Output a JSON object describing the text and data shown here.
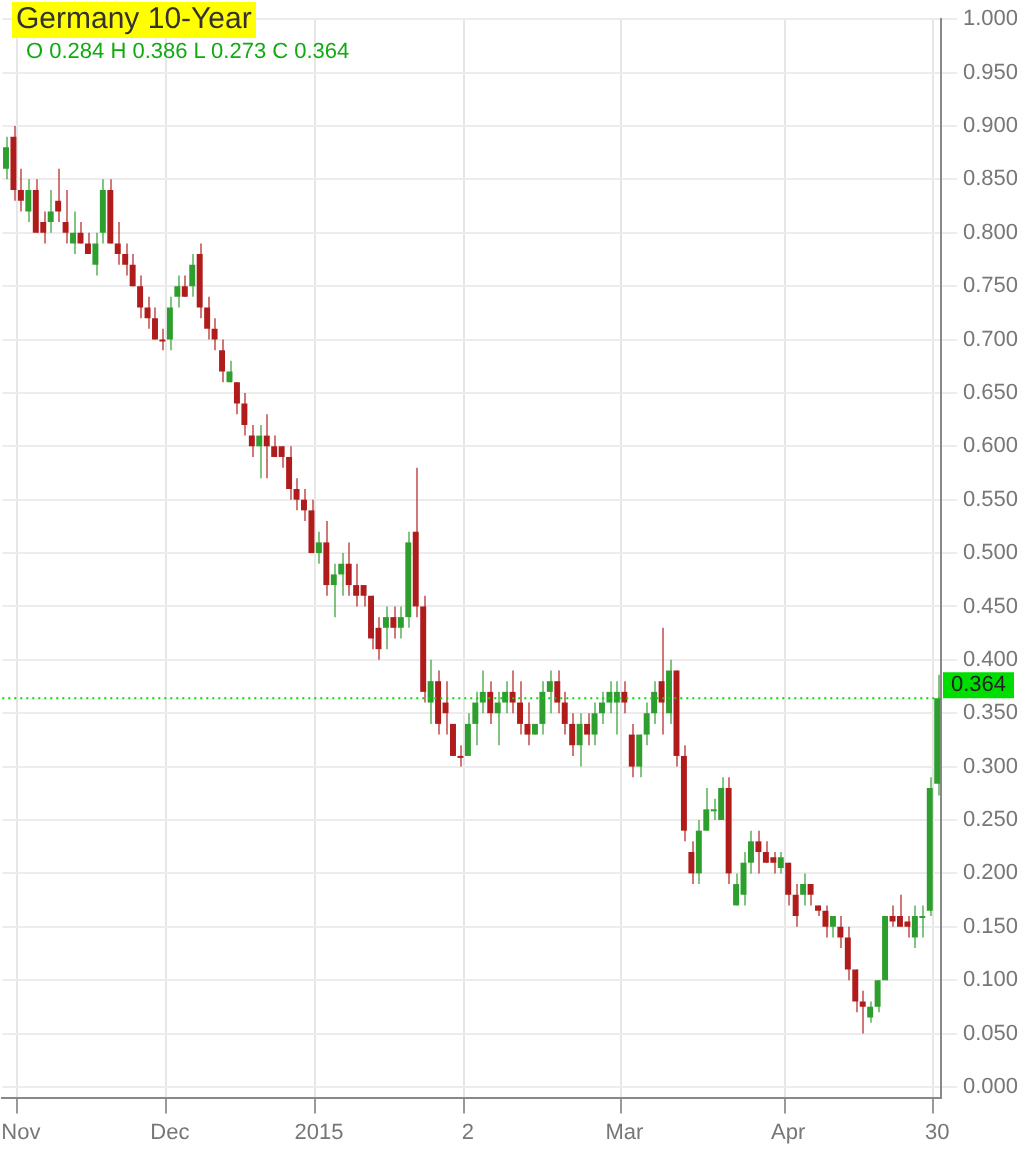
{
  "chart_data": {
    "type": "candlestick",
    "title": "Germany 10-Year",
    "subtitle": "O 0.284 H 0.386 L 0.273 C 0.364",
    "categories": [
      null,
      null,
      "Nov",
      null,
      null,
      null,
      null,
      null,
      null,
      null,
      null,
      null,
      null,
      null,
      null,
      null,
      null,
      null,
      null,
      null,
      null,
      null,
      "Dec",
      null,
      null,
      null,
      null,
      null,
      null,
      null,
      null,
      null,
      null,
      null,
      null,
      null,
      null,
      null,
      null,
      null,
      null,
      null,
      "2015",
      null,
      null,
      null,
      null,
      null,
      null,
      null,
      null,
      null,
      null,
      null,
      null,
      null,
      null,
      null,
      null,
      null,
      null,
      null,
      "2",
      null,
      null,
      null,
      null,
      null,
      null,
      null,
      null,
      null,
      null,
      null,
      null,
      null,
      null,
      null,
      null,
      null,
      null,
      null,
      null,
      "Mar",
      null,
      null,
      null,
      null,
      null,
      null,
      null,
      null,
      null,
      null,
      null,
      null,
      null,
      null,
      null,
      null,
      null,
      null,
      null,
      null,
      null,
      "Apr",
      null,
      null,
      null,
      null,
      null,
      null,
      null,
      null,
      null,
      null,
      null,
      null,
      null,
      null,
      null,
      null,
      null,
      null,
      null,
      "30"
    ],
    "ohlc": [
      [
        0.86,
        0.89,
        0.85,
        0.88
      ],
      [
        0.89,
        0.9,
        0.83,
        0.84
      ],
      [
        0.84,
        0.86,
        0.82,
        0.83
      ],
      [
        0.82,
        0.85,
        0.81,
        0.84
      ],
      [
        0.84,
        0.85,
        0.8,
        0.8
      ],
      [
        0.81,
        0.82,
        0.79,
        0.8
      ],
      [
        0.81,
        0.84,
        0.8,
        0.82
      ],
      [
        0.83,
        0.86,
        0.81,
        0.82
      ],
      [
        0.81,
        0.84,
        0.79,
        0.8
      ],
      [
        0.79,
        0.82,
        0.78,
        0.8
      ],
      [
        0.8,
        0.81,
        0.79,
        0.79
      ],
      [
        0.79,
        0.8,
        0.78,
        0.78
      ],
      [
        0.77,
        0.8,
        0.76,
        0.79
      ],
      [
        0.8,
        0.85,
        0.79,
        0.84
      ],
      [
        0.84,
        0.85,
        0.79,
        0.79
      ],
      [
        0.79,
        0.81,
        0.77,
        0.78
      ],
      [
        0.78,
        0.79,
        0.76,
        0.77
      ],
      [
        0.77,
        0.78,
        0.75,
        0.75
      ],
      [
        0.75,
        0.76,
        0.72,
        0.73
      ],
      [
        0.73,
        0.74,
        0.71,
        0.72
      ],
      [
        0.72,
        0.73,
        0.7,
        0.7
      ],
      [
        0.7,
        0.71,
        0.69,
        0.7
      ],
      [
        0.7,
        0.74,
        0.69,
        0.73
      ],
      [
        0.74,
        0.76,
        0.73,
        0.75
      ],
      [
        0.75,
        0.76,
        0.74,
        0.74
      ],
      [
        0.75,
        0.78,
        0.74,
        0.77
      ],
      [
        0.78,
        0.79,
        0.72,
        0.73
      ],
      [
        0.73,
        0.74,
        0.7,
        0.71
      ],
      [
        0.71,
        0.72,
        0.69,
        0.7
      ],
      [
        0.69,
        0.7,
        0.66,
        0.67
      ],
      [
        0.66,
        0.68,
        0.66,
        0.67
      ],
      [
        0.66,
        0.66,
        0.63,
        0.64
      ],
      [
        0.64,
        0.65,
        0.61,
        0.62
      ],
      [
        0.61,
        0.62,
        0.59,
        0.6
      ],
      [
        0.6,
        0.62,
        0.57,
        0.61
      ],
      [
        0.61,
        0.63,
        0.57,
        0.6
      ],
      [
        0.6,
        0.61,
        0.59,
        0.59
      ],
      [
        0.6,
        0.6,
        0.58,
        0.59
      ],
      [
        0.59,
        0.6,
        0.55,
        0.56
      ],
      [
        0.56,
        0.57,
        0.54,
        0.55
      ],
      [
        0.55,
        0.56,
        0.53,
        0.54
      ],
      [
        0.54,
        0.55,
        0.5,
        0.5
      ],
      [
        0.5,
        0.52,
        0.49,
        0.51
      ],
      [
        0.51,
        0.53,
        0.46,
        0.47
      ],
      [
        0.47,
        0.49,
        0.44,
        0.48
      ],
      [
        0.48,
        0.5,
        0.46,
        0.49
      ],
      [
        0.49,
        0.51,
        0.46,
        0.47
      ],
      [
        0.47,
        0.49,
        0.45,
        0.46
      ],
      [
        0.47,
        0.47,
        0.45,
        0.46
      ],
      [
        0.46,
        0.46,
        0.41,
        0.42
      ],
      [
        0.43,
        0.44,
        0.4,
        0.41
      ],
      [
        0.43,
        0.45,
        0.41,
        0.44
      ],
      [
        0.44,
        0.45,
        0.42,
        0.43
      ],
      [
        0.43,
        0.45,
        0.42,
        0.44
      ],
      [
        0.44,
        0.52,
        0.43,
        0.51
      ],
      [
        0.52,
        0.58,
        0.44,
        0.45
      ],
      [
        0.45,
        0.46,
        0.36,
        0.37
      ],
      [
        0.36,
        0.4,
        0.34,
        0.38
      ],
      [
        0.38,
        0.39,
        0.33,
        0.34
      ],
      [
        0.36,
        0.38,
        0.33,
        0.35
      ],
      [
        0.34,
        0.34,
        0.31,
        0.31
      ],
      [
        0.31,
        0.32,
        0.3,
        0.31
      ],
      [
        0.31,
        0.35,
        0.31,
        0.34
      ],
      [
        0.34,
        0.37,
        0.32,
        0.36
      ],
      [
        0.36,
        0.39,
        0.35,
        0.37
      ],
      [
        0.37,
        0.38,
        0.34,
        0.35
      ],
      [
        0.35,
        0.37,
        0.32,
        0.36
      ],
      [
        0.36,
        0.38,
        0.35,
        0.37
      ],
      [
        0.37,
        0.39,
        0.35,
        0.36
      ],
      [
        0.36,
        0.38,
        0.33,
        0.34
      ],
      [
        0.34,
        0.36,
        0.32,
        0.33
      ],
      [
        0.33,
        0.34,
        0.33,
        0.34
      ],
      [
        0.34,
        0.38,
        0.33,
        0.37
      ],
      [
        0.37,
        0.39,
        0.35,
        0.38
      ],
      [
        0.38,
        0.39,
        0.35,
        0.36
      ],
      [
        0.36,
        0.37,
        0.33,
        0.34
      ],
      [
        0.34,
        0.35,
        0.31,
        0.32
      ],
      [
        0.32,
        0.35,
        0.3,
        0.34
      ],
      [
        0.34,
        0.35,
        0.32,
        0.33
      ],
      [
        0.33,
        0.36,
        0.32,
        0.35
      ],
      [
        0.35,
        0.37,
        0.34,
        0.36
      ],
      [
        0.36,
        0.38,
        0.35,
        0.37
      ],
      [
        0.36,
        0.38,
        0.33,
        0.37
      ],
      [
        0.37,
        0.38,
        0.35,
        0.36
      ],
      [
        0.33,
        0.34,
        0.29,
        0.3
      ],
      [
        0.3,
        0.33,
        0.29,
        0.33
      ],
      [
        0.33,
        0.36,
        0.32,
        0.35
      ],
      [
        0.35,
        0.38,
        0.34,
        0.37
      ],
      [
        0.38,
        0.43,
        0.33,
        0.36
      ],
      [
        0.35,
        0.4,
        0.34,
        0.39
      ],
      [
        0.39,
        0.39,
        0.3,
        0.31
      ],
      [
        0.31,
        0.32,
        0.23,
        0.24
      ],
      [
        0.22,
        0.23,
        0.19,
        0.2
      ],
      [
        0.2,
        0.25,
        0.19,
        0.24
      ],
      [
        0.24,
        0.28,
        0.24,
        0.26
      ],
      [
        0.26,
        0.27,
        0.25,
        0.26
      ],
      [
        0.25,
        0.29,
        0.25,
        0.28
      ],
      [
        0.28,
        0.29,
        0.19,
        0.2
      ],
      [
        0.17,
        0.2,
        0.17,
        0.19
      ],
      [
        0.18,
        0.22,
        0.17,
        0.21
      ],
      [
        0.21,
        0.24,
        0.2,
        0.23
      ],
      [
        0.23,
        0.24,
        0.2,
        0.22
      ],
      [
        0.22,
        0.23,
        0.21,
        0.21
      ],
      [
        0.215,
        0.22,
        0.2,
        0.21
      ],
      [
        0.205,
        0.22,
        0.2,
        0.215
      ],
      [
        0.21,
        0.21,
        0.17,
        0.18
      ],
      [
        0.18,
        0.19,
        0.15,
        0.16
      ],
      [
        0.18,
        0.2,
        0.17,
        0.19
      ],
      [
        0.19,
        0.19,
        0.17,
        0.18
      ],
      [
        0.17,
        0.17,
        0.16,
        0.165
      ],
      [
        0.165,
        0.17,
        0.14,
        0.15
      ],
      [
        0.15,
        0.16,
        0.14,
        0.16
      ],
      [
        0.15,
        0.16,
        0.13,
        0.14
      ],
      [
        0.14,
        0.15,
        0.1,
        0.11
      ],
      [
        0.11,
        0.11,
        0.07,
        0.08
      ],
      [
        0.08,
        0.09,
        0.05,
        0.075
      ],
      [
        0.065,
        0.08,
        0.06,
        0.075
      ],
      [
        0.075,
        0.1,
        0.07,
        0.1
      ],
      [
        0.1,
        0.16,
        0.1,
        0.16
      ],
      [
        0.16,
        0.17,
        0.15,
        0.155
      ],
      [
        0.16,
        0.18,
        0.15,
        0.15
      ],
      [
        0.155,
        0.16,
        0.14,
        0.15
      ],
      [
        0.14,
        0.17,
        0.13,
        0.16
      ],
      [
        0.16,
        0.17,
        0.14,
        0.16
      ],
      [
        0.165,
        0.29,
        0.16,
        0.28
      ],
      [
        0.284,
        0.386,
        0.273,
        0.364
      ]
    ],
    "colors": [
      "#2e9e2e",
      "#b01c1c",
      "#b01c1c",
      "#2e9e2e",
      "#b01c1c",
      "#b01c1c",
      "#2e9e2e",
      "#b01c1c",
      "#b01c1c",
      "#2e9e2e",
      "#b01c1c",
      "#b01c1c",
      "#2e9e2e",
      "#2e9e2e",
      "#b01c1c",
      "#b01c1c",
      "#b01c1c",
      "#b01c1c",
      "#b01c1c",
      "#b01c1c",
      "#b01c1c",
      "#b01c1c",
      "#2e9e2e",
      "#2e9e2e",
      "#b01c1c",
      "#2e9e2e",
      "#b01c1c",
      "#b01c1c",
      "#b01c1c",
      "#b01c1c",
      "#2e9e2e",
      "#b01c1c",
      "#b01c1c",
      "#b01c1c",
      "#2e9e2e",
      "#b01c1c",
      "#b01c1c",
      "#b01c1c",
      "#b01c1c",
      "#b01c1c",
      "#b01c1c",
      "#b01c1c",
      "#2e9e2e",
      "#b01c1c",
      "#2e9e2e",
      "#2e9e2e",
      "#b01c1c",
      "#b01c1c",
      "#b01c1c",
      "#b01c1c",
      "#b01c1c",
      "#2e9e2e",
      "#b01c1c",
      "#2e9e2e",
      "#2e9e2e",
      "#b01c1c",
      "#b01c1c",
      "#2e9e2e",
      "#b01c1c",
      "#b01c1c",
      "#b01c1c",
      "#b01c1c",
      "#2e9e2e",
      "#2e9e2e",
      "#2e9e2e",
      "#b01c1c",
      "#2e9e2e",
      "#2e9e2e",
      "#b01c1c",
      "#b01c1c",
      "#b01c1c",
      "#2e9e2e",
      "#2e9e2e",
      "#2e9e2e",
      "#b01c1c",
      "#b01c1c",
      "#b01c1c",
      "#2e9e2e",
      "#b01c1c",
      "#2e9e2e",
      "#2e9e2e",
      "#2e9e2e",
      "#2e9e2e",
      "#b01c1c",
      "#b01c1c",
      "#2e9e2e",
      "#2e9e2e",
      "#2e9e2e",
      "#b01c1c",
      "#2e9e2e",
      "#b01c1c",
      "#b01c1c",
      "#b01c1c",
      "#2e9e2e",
      "#2e9e2e",
      "#2e9e2e",
      "#2e9e2e",
      "#b01c1c",
      "#2e9e2e",
      "#2e9e2e",
      "#2e9e2e",
      "#b01c1c",
      "#b01c1c",
      "#b01c1c",
      "#2e9e2e",
      "#b01c1c",
      "#b01c1c",
      "#2e9e2e",
      "#b01c1c",
      "#b01c1c",
      "#b01c1c",
      "#2e9e2e",
      "#b01c1c",
      "#b01c1c",
      "#b01c1c",
      "#b01c1c",
      "#2e9e2e",
      "#2e9e2e",
      "#2e9e2e",
      "#b01c1c",
      "#b01c1c",
      "#b01c1c",
      "#2e9e2e",
      "#2e9e2e",
      "#2e9e2e",
      "#2e9e2e"
    ],
    "ylim": [
      -0.01,
      1.0
    ],
    "yticks": [
      {
        "value": 0,
        "label": "0.000"
      },
      {
        "value": 0.05,
        "label": "0.050"
      },
      {
        "value": 0.1,
        "label": "0.100"
      },
      {
        "value": 0.15,
        "label": "0.150"
      },
      {
        "value": 0.2,
        "label": "0.200"
      },
      {
        "value": 0.25,
        "label": "0.250"
      },
      {
        "value": 0.3,
        "label": "0.300"
      },
      {
        "value": 0.35,
        "label": "0.350"
      },
      {
        "value": 0.4,
        "label": "0.400"
      },
      {
        "value": 0.45,
        "label": "0.450"
      },
      {
        "value": 0.5,
        "label": "0.500"
      },
      {
        "value": 0.55,
        "label": "0.550"
      },
      {
        "value": 0.6,
        "label": "0.600"
      },
      {
        "value": 0.65,
        "label": "0.650"
      },
      {
        "value": 0.7,
        "label": "0.700"
      },
      {
        "value": 0.75,
        "label": "0.750"
      },
      {
        "value": 0.8,
        "label": "0.800"
      },
      {
        "value": 0.85,
        "label": "0.850"
      },
      {
        "value": 0.9,
        "label": "0.900"
      },
      {
        "value": 0.95,
        "label": "0.950"
      },
      {
        "value": 1,
        "label": "1.000"
      }
    ],
    "ref_lines": [
      {
        "axis": "y",
        "value": 0.364,
        "label": "0.364",
        "color": "#00dd00",
        "line_style": "dotted"
      }
    ],
    "grid": true
  }
}
